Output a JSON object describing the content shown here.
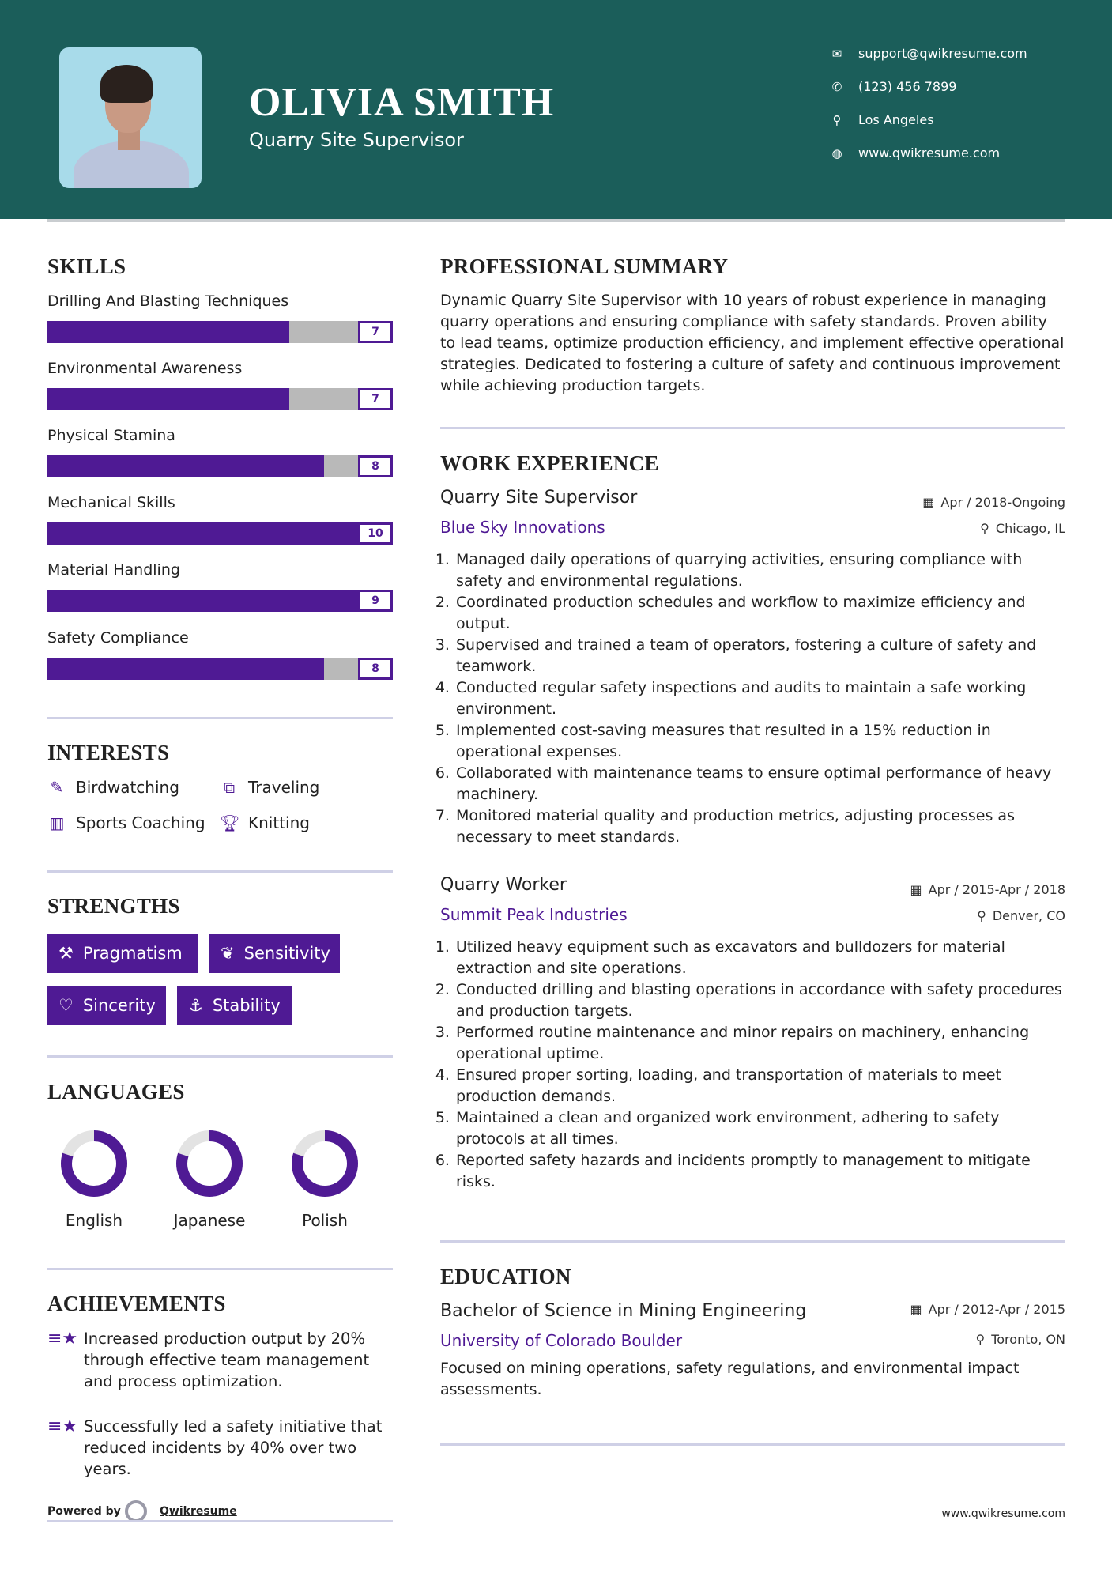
{
  "header": {
    "name": "OLIVIA SMITH",
    "title": "Quarry Site Supervisor",
    "contacts": [
      {
        "icon": "envelope-icon",
        "text": "support@qwikresume.com"
      },
      {
        "icon": "phone-icon",
        "text": "(123) 456 7899"
      },
      {
        "icon": "map-pin-icon",
        "text": "Los Angeles"
      },
      {
        "icon": "globe-icon",
        "text": "www.qwikresume.com"
      }
    ]
  },
  "colors": {
    "header_bg": "#1b5e5a",
    "accent": "#4f1a94",
    "bar_empty": "#b9b9b9"
  },
  "skills": {
    "heading": "SKILLS",
    "items": [
      {
        "label": "Drilling And Blasting Techniques",
        "value": "7",
        "max": 10
      },
      {
        "label": "Environmental Awareness",
        "value": "7",
        "max": 10
      },
      {
        "label": "Physical Stamina",
        "value": "8",
        "max": 10
      },
      {
        "label": "Mechanical Skills",
        "value": "10",
        "max": 10
      },
      {
        "label": "Material Handling",
        "value": "9",
        "max": 10
      },
      {
        "label": "Safety Compliance",
        "value": "8",
        "max": 10
      }
    ]
  },
  "interests": {
    "heading": "INTERESTS",
    "items": [
      {
        "icon": "edit-icon",
        "label": "Birdwatching"
      },
      {
        "icon": "binoculars-icon",
        "label": "Traveling"
      },
      {
        "icon": "briefcase-icon",
        "label": "Sports Coaching"
      },
      {
        "icon": "trophy-icon",
        "label": "Knitting"
      }
    ]
  },
  "strengths": {
    "heading": "STRENGTHS",
    "items": [
      {
        "icon": "gavel-icon",
        "label": "Pragmatism"
      },
      {
        "icon": "leaf-icon",
        "label": "Sensitivity"
      },
      {
        "icon": "heart-icon",
        "label": "Sincerity"
      },
      {
        "icon": "anchor-icon",
        "label": "Stability"
      }
    ]
  },
  "languages": {
    "heading": "LANGUAGES",
    "items": [
      {
        "label": "English",
        "level_percent": 80
      },
      {
        "label": "Japanese",
        "level_percent": 80
      },
      {
        "label": "Polish",
        "level_percent": 80
      }
    ]
  },
  "achievements": {
    "heading": "ACHIEVEMENTS",
    "items": [
      "Increased production output by 20% through effective team management and process optimization.",
      "Successfully led a safety initiative that reduced incidents by 40% over two years."
    ]
  },
  "summary": {
    "heading": "PROFESSIONAL SUMMARY",
    "text": "Dynamic Quarry Site Supervisor with 10 years of robust experience in managing quarry operations and ensuring compliance with safety standards. Proven ability to lead teams, optimize production efficiency, and implement effective operational strategies. Dedicated to fostering a culture of safety and continuous improvement while achieving production targets."
  },
  "experience": {
    "heading": "WORK EXPERIENCE",
    "jobs": [
      {
        "title": "Quarry Site Supervisor",
        "company": "Blue Sky Innovations",
        "dates": "Apr / 2018-Ongoing",
        "location": "Chicago, IL",
        "duties": [
          "Managed daily operations of quarrying activities, ensuring compliance with safety and environmental regulations.",
          "Coordinated production schedules and workflow to maximize efficiency and output.",
          "Supervised and trained a team of operators, fostering a culture of safety and teamwork.",
          "Conducted regular safety inspections and audits to maintain a safe working environment.",
          "Implemented cost-saving measures that resulted in a 15% reduction in operational expenses.",
          "Collaborated with maintenance teams to ensure optimal performance of heavy machinery.",
          "Monitored material quality and production metrics, adjusting processes as necessary to meet standards."
        ]
      },
      {
        "title": "Quarry Worker",
        "company": "Summit Peak Industries",
        "dates": "Apr / 2015-Apr / 2018",
        "location": "Denver, CO",
        "duties": [
          "Utilized heavy equipment such as excavators and bulldozers for material extraction and site operations.",
          "Conducted drilling and blasting operations in accordance with safety procedures and production targets.",
          "Performed routine maintenance and minor repairs on machinery, enhancing operational uptime.",
          "Ensured proper sorting, loading, and transportation of materials to meet production demands.",
          "Maintained a clean and organized work environment, adhering to safety protocols at all times.",
          "Reported safety hazards and incidents promptly to management to mitigate risks."
        ]
      }
    ]
  },
  "education": {
    "heading": "EDUCATION",
    "degree": "Bachelor of Science in Mining Engineering",
    "school": "University of Colorado Boulder",
    "dates": "Apr / 2012-Apr / 2015",
    "location": "Toronto, ON",
    "description": "Focused on mining operations, safety regulations, and environmental impact assessments."
  },
  "footer": {
    "powered_by": "Powered by",
    "brand": "Qwikresume",
    "url": "www.qwikresume.com"
  }
}
